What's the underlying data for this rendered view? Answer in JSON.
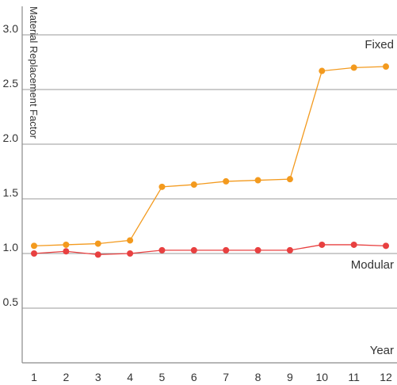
{
  "chart_data": {
    "type": "line",
    "title": "",
    "ylabel": "Material Replacement Factor",
    "xlabel": "Year",
    "x": [
      1,
      2,
      3,
      4,
      5,
      6,
      7,
      8,
      9,
      10,
      11,
      12
    ],
    "x_tick_labels": [
      "1",
      "2",
      "3",
      "4",
      "5",
      "6",
      "7",
      "8",
      "9",
      "10",
      "11",
      "12"
    ],
    "y_ticks": [
      0.5,
      1.0,
      1.5,
      2.0,
      2.5,
      3.0
    ],
    "y_tick_labels": [
      "0.5",
      "1.0",
      "1.5",
      "2.0",
      "2.5",
      "3.0"
    ],
    "ylim": [
      0.0,
      3.0
    ],
    "grid": "horizontal",
    "legend": "none",
    "series": [
      {
        "name": "Fixed",
        "color": "#f39a1e",
        "values": [
          1.07,
          1.08,
          1.09,
          1.12,
          1.61,
          1.63,
          1.66,
          1.67,
          1.68,
          2.67,
          2.7,
          2.71
        ]
      },
      {
        "name": "Modular",
        "color": "#e84040",
        "values": [
          1.0,
          1.02,
          0.99,
          1.0,
          1.03,
          1.03,
          1.03,
          1.03,
          1.03,
          1.08,
          1.08,
          1.07
        ]
      }
    ]
  }
}
